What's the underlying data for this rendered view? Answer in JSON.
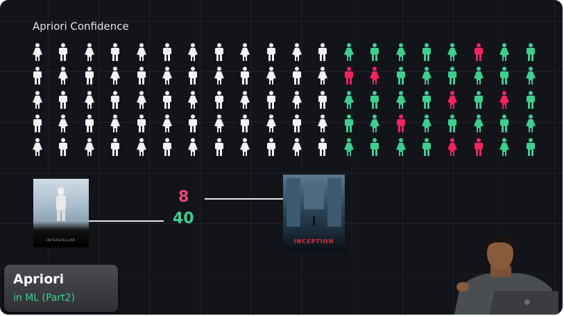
{
  "title": "Apriori Confidence",
  "colors": {
    "white": "#f2f2f2",
    "green": "#3ecf8e",
    "red": "#f0245e",
    "background": "#12141a"
  },
  "figure_grid": {
    "rows": [
      "WWWWWWWWWWWWGGGGGRGG",
      "WWWWWWWWWWWWRRGGGGGG",
      "WWWWWWWWWWWWGGGGRGRG",
      "WWWWWWWWWWWWGGRGGGGG",
      "WWWWWWWWWWWWGGGGRRGG"
    ]
  },
  "posters": {
    "left": "INTERSTELLAR",
    "right": "INCEPTION"
  },
  "counts": {
    "red": "8",
    "green": "40"
  },
  "badge": {
    "title": "Apriori",
    "subtitle": "in ML (Part2)"
  }
}
